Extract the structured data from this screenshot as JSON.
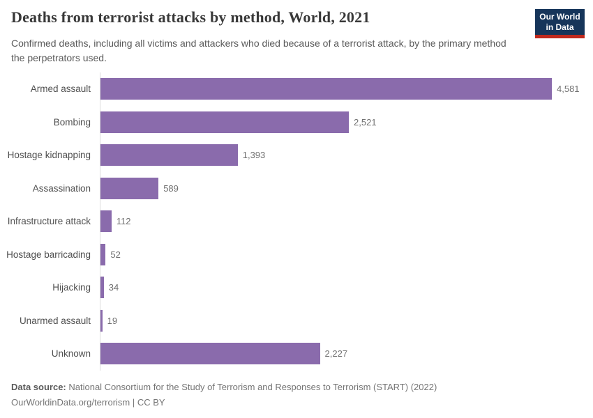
{
  "header": {
    "title": "Deaths from terrorist attacks by method, World, 2021",
    "subtitle": "Confirmed deaths, including all victims and attackers who died because of a terrorist attack, by the primary method the perpetrators used.",
    "logo": {
      "line1": "Our World",
      "line2": "in Data"
    }
  },
  "chart_data": {
    "type": "bar",
    "orientation": "horizontal",
    "title": "Deaths from terrorist attacks by method, World, 2021",
    "xlabel": "",
    "ylabel": "",
    "xlim": [
      0,
      4581
    ],
    "grid": false,
    "legend": false,
    "bar_color": "#8a6bac",
    "categories": [
      "Armed assault",
      "Bombing",
      "Hostage kidnapping",
      "Assassination",
      "Infrastructure attack",
      "Hostage barricading",
      "Hijacking",
      "Unarmed assault",
      "Unknown"
    ],
    "values": [
      4581,
      2521,
      1393,
      589,
      112,
      52,
      34,
      19,
      2227
    ],
    "value_labels": [
      "4,581",
      "2,521",
      "1,393",
      "589",
      "112",
      "52",
      "34",
      "19",
      "2,227"
    ]
  },
  "footer": {
    "data_source_label": "Data source:",
    "data_source_text": " National Consortium for the Study of Terrorism and Responses to Terrorism (START) (2022)",
    "license_line": "OurWorldinData.org/terrorism | CC BY"
  },
  "colors": {
    "bar": "#8a6bac",
    "logo_navy": "#16355a",
    "logo_red": "#c0291d",
    "axis_line": "#dcdcdc",
    "title_text": "#383838",
    "subtitle_text": "#595959"
  }
}
